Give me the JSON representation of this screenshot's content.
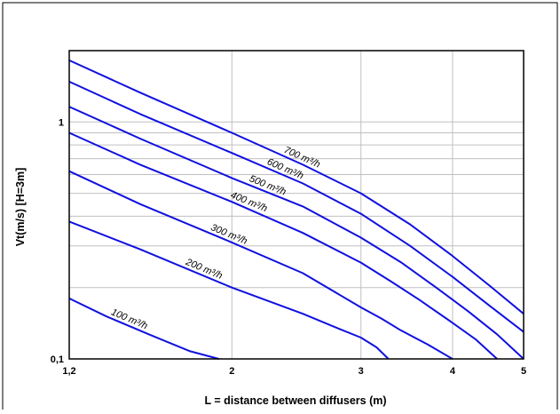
{
  "chart_data": {
    "type": "line",
    "title": "",
    "xlabel": "L = distance between diffusers (m)",
    "ylabel": "Vt(m/s) [H=3m]",
    "x_scale": "log",
    "y_scale": "log",
    "xlim": [
      1.2,
      5
    ],
    "ylim": [
      0.1,
      2
    ],
    "x_ticks": [
      {
        "value": 1.2,
        "label": "1,2"
      },
      {
        "value": 2,
        "label": "2"
      },
      {
        "value": 3,
        "label": "3"
      },
      {
        "value": 4,
        "label": "4"
      },
      {
        "value": 5,
        "label": "5"
      }
    ],
    "y_ticks": [
      {
        "value": 0.1,
        "label": "0,1"
      },
      {
        "value": 1,
        "label": "1"
      }
    ],
    "grid": true,
    "line_color": "#1010e0",
    "series": [
      {
        "name": "100 m³/h",
        "x": [
          1.2,
          1.35,
          1.55,
          1.75,
          1.92
        ],
        "y": [
          0.18,
          0.151,
          0.126,
          0.108,
          0.1
        ]
      },
      {
        "name": "200 m³/h",
        "x": [
          1.2,
          1.5,
          2.0,
          2.5,
          2.8,
          3.0,
          3.15,
          3.27
        ],
        "y": [
          0.38,
          0.29,
          0.2,
          0.155,
          0.134,
          0.123,
          0.112,
          0.1
        ]
      },
      {
        "name": "300 m³/h",
        "x": [
          1.2,
          1.5,
          2.0,
          2.5,
          3.0,
          3.2,
          3.4,
          3.7,
          4.0
        ],
        "y": [
          0.62,
          0.45,
          0.31,
          0.23,
          0.165,
          0.148,
          0.132,
          0.115,
          0.1
        ]
      },
      {
        "name": "400 m³/h",
        "x": [
          1.2,
          1.5,
          2.0,
          2.5,
          3.0,
          3.3,
          3.6,
          4.0,
          4.3,
          4.6
        ],
        "y": [
          0.9,
          0.66,
          0.46,
          0.34,
          0.255,
          0.212,
          0.178,
          0.142,
          0.121,
          0.1
        ]
      },
      {
        "name": "500 m³/h",
        "x": [
          1.2,
          1.5,
          2.0,
          2.5,
          3.0,
          3.4,
          3.8,
          4.2,
          4.6,
          5.0
        ],
        "y": [
          1.16,
          0.85,
          0.58,
          0.44,
          0.325,
          0.256,
          0.2,
          0.159,
          0.127,
          0.1
        ]
      },
      {
        "name": "600 m³/h",
        "x": [
          1.2,
          1.5,
          2.0,
          2.5,
          3.0,
          3.5,
          4.0,
          4.5,
          5.0
        ],
        "y": [
          1.48,
          1.08,
          0.74,
          0.55,
          0.41,
          0.3,
          0.222,
          0.167,
          0.13
        ]
      },
      {
        "name": "700 m³/h",
        "x": [
          1.2,
          1.5,
          2.0,
          2.5,
          3.0,
          3.5,
          4.0,
          4.5,
          5.0
        ],
        "y": [
          1.82,
          1.33,
          0.9,
          0.66,
          0.5,
          0.37,
          0.272,
          0.203,
          0.155
        ]
      }
    ]
  }
}
